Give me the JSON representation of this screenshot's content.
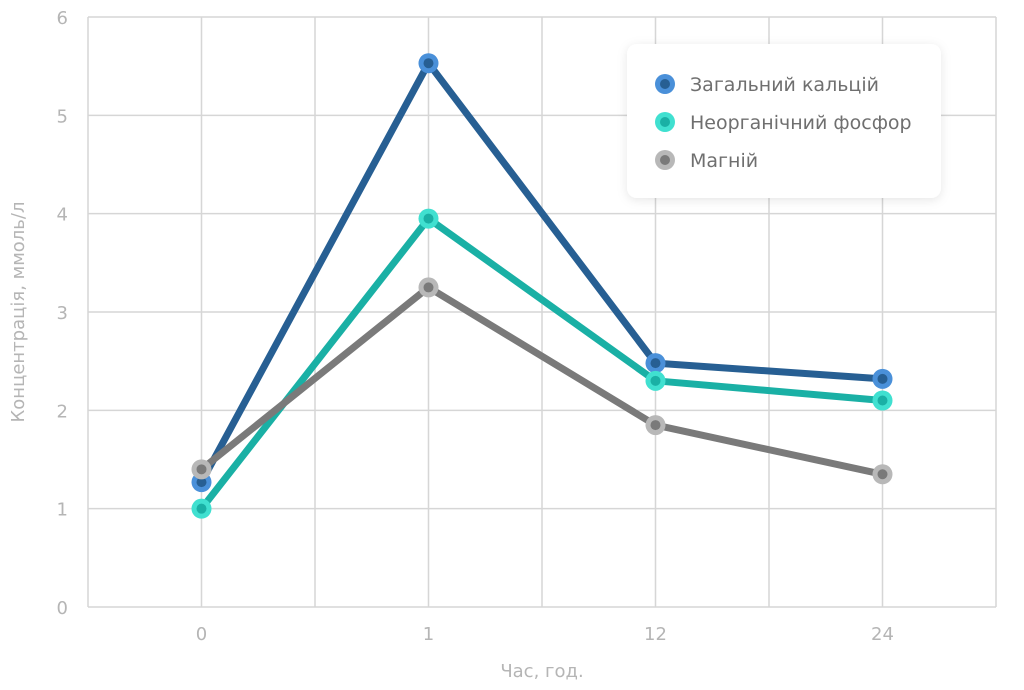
{
  "chart_data": {
    "type": "line",
    "xlabel": "Час, год.",
    "ylabel": "Концентрація, ммоль/л",
    "categories": [
      "0",
      "1",
      "12",
      "24"
    ],
    "ylim": [
      0,
      6
    ],
    "yticks": [
      "0",
      "1",
      "2",
      "3",
      "4",
      "5",
      "6"
    ],
    "grid": true,
    "legend_position": "top-right",
    "series": [
      {
        "name": "Загальний кальцій",
        "values": [
          1.27,
          5.53,
          2.48,
          2.32
        ],
        "color": "#275f93",
        "marker_outer": "#4a90d9"
      },
      {
        "name": "Неорганічний фосфор",
        "values": [
          1.0,
          3.95,
          2.3,
          2.1
        ],
        "color": "#1ab0a5",
        "marker_outer": "#40e0d0"
      },
      {
        "name": "Магній",
        "values": [
          1.4,
          3.25,
          1.85,
          1.35
        ],
        "color": "#7a7a7a",
        "marker_outer": "#b8b8b8"
      }
    ]
  }
}
